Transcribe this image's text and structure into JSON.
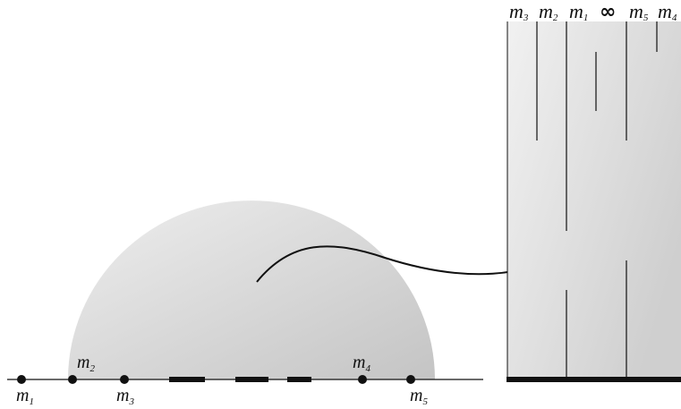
{
  "colors": {
    "ink": "#111111",
    "region_fill_light": "#ececec",
    "region_fill_dark": "#c9c9c9",
    "strip_fill_light": "#efefef",
    "strip_fill_dark": "#d2d2d2"
  },
  "left_panel": {
    "points": [
      {
        "base": "m",
        "sub": "1"
      },
      {
        "base": "m",
        "sub": "2"
      },
      {
        "base": "m",
        "sub": "3"
      },
      {
        "base": "m",
        "sub": "4"
      },
      {
        "base": "m",
        "sub": "5"
      }
    ]
  },
  "right_panel": {
    "top_labels": [
      {
        "base": "m",
        "sub": "3"
      },
      {
        "base": "m",
        "sub": "2"
      },
      {
        "base": "m",
        "sub": "1"
      },
      {
        "base": "∞",
        "sub": ""
      },
      {
        "base": "m",
        "sub": "5"
      },
      {
        "base": "m",
        "sub": "4"
      }
    ]
  },
  "icons": {
    "arrow": "curved-arrow-icon"
  }
}
